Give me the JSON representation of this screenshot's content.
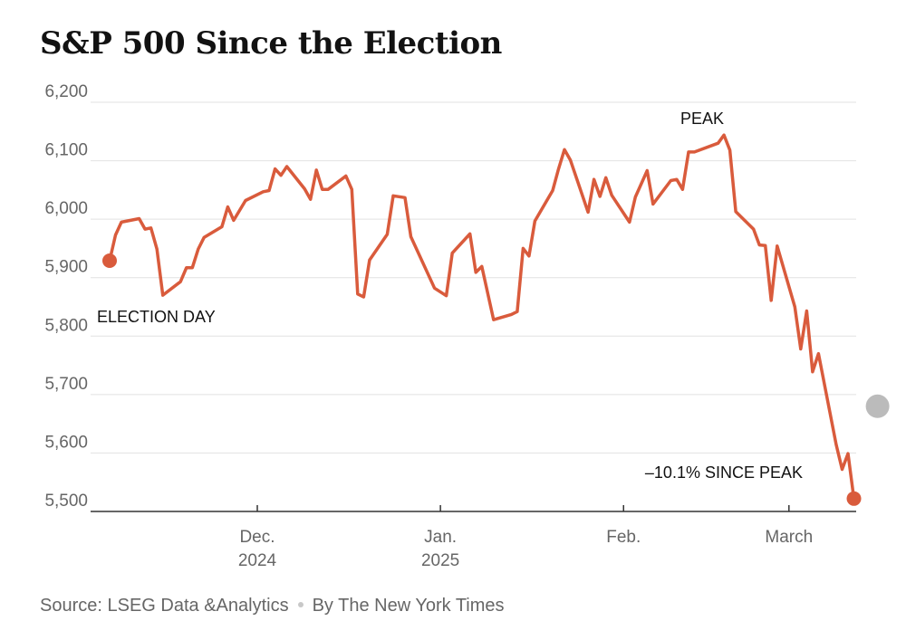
{
  "chart_data": {
    "type": "line",
    "title": "S&P 500 Since the Election",
    "ylim": [
      5500,
      6200
    ],
    "yticks": [
      5500,
      5600,
      5700,
      5800,
      5900,
      6000,
      6100,
      6200
    ],
    "ytick_labels": [
      "5,500",
      "5,600",
      "5,700",
      "5,800",
      "5,900",
      "6,000",
      "6,100",
      "6,200"
    ],
    "x_axis_months": [
      {
        "label": "Dec.",
        "sublabel": "2024",
        "day": 25
      },
      {
        "label": "Jan.",
        "sublabel": "2025",
        "day": 56
      },
      {
        "label": "Feb.",
        "sublabel": "",
        "day": 87
      },
      {
        "label": "March",
        "sublabel": "",
        "day": 115
      }
    ],
    "x_day_range": [
      -2,
      130
    ],
    "series": [
      {
        "name": "S&P 500",
        "color": "#d95b3c",
        "points": [
          [
            0,
            5929
          ],
          [
            1,
            5973
          ],
          [
            2,
            5995
          ],
          [
            5,
            6001
          ],
          [
            6,
            5983
          ],
          [
            7,
            5985
          ],
          [
            8,
            5949
          ],
          [
            9,
            5870
          ],
          [
            12,
            5893
          ],
          [
            13,
            5917
          ],
          [
            14,
            5917
          ],
          [
            15,
            5949
          ],
          [
            16,
            5969
          ],
          [
            19,
            5987
          ],
          [
            20,
            6021
          ],
          [
            21,
            5998
          ],
          [
            23,
            6032
          ],
          [
            26,
            6047
          ],
          [
            27,
            6049
          ],
          [
            28,
            6086
          ],
          [
            29,
            6075
          ],
          [
            30,
            6090
          ],
          [
            33,
            6052
          ],
          [
            34,
            6034
          ],
          [
            35,
            6084
          ],
          [
            36,
            6051
          ],
          [
            37,
            6051
          ],
          [
            40,
            6074
          ],
          [
            41,
            6051
          ],
          [
            42,
            5872
          ],
          [
            43,
            5867
          ],
          [
            44,
            5930
          ],
          [
            47,
            5974
          ],
          [
            48,
            6040
          ],
          [
            50,
            6037
          ],
          [
            51,
            5970
          ],
          [
            55,
            5882
          ],
          [
            57,
            5869
          ],
          [
            58,
            5942
          ],
          [
            61,
            5975
          ],
          [
            62,
            5909
          ],
          [
            63,
            5919
          ],
          [
            65,
            5828
          ],
          [
            68,
            5837
          ],
          [
            69,
            5842
          ],
          [
            70,
            5950
          ],
          [
            71,
            5937
          ],
          [
            72,
            5997
          ],
          [
            75,
            6049
          ],
          [
            76,
            6086
          ],
          [
            77,
            6119
          ],
          [
            78,
            6101
          ],
          [
            81,
            6012
          ],
          [
            82,
            6068
          ],
          [
            83,
            6039
          ],
          [
            84,
            6071
          ],
          [
            85,
            6041
          ],
          [
            88,
            5995
          ],
          [
            89,
            6038
          ],
          [
            91,
            6083
          ],
          [
            92,
            6026
          ],
          [
            95,
            6066
          ],
          [
            96,
            6068
          ],
          [
            97,
            6051
          ],
          [
            98,
            6115
          ],
          [
            99,
            6115
          ],
          [
            103,
            6130
          ],
          [
            104,
            6144
          ],
          [
            105,
            6118
          ],
          [
            106,
            6013
          ],
          [
            109,
            5983
          ],
          [
            110,
            5956
          ],
          [
            111,
            5955
          ],
          [
            112,
            5861
          ],
          [
            113,
            5954
          ],
          [
            116,
            5850
          ],
          [
            117,
            5778
          ],
          [
            118,
            5843
          ],
          [
            119,
            5739
          ],
          [
            120,
            5770
          ],
          [
            123,
            5614
          ],
          [
            124,
            5572
          ],
          [
            125,
            5599
          ],
          [
            126,
            5522
          ]
        ]
      }
    ],
    "markers": [
      {
        "day": 0,
        "value": 5929,
        "color": "#d95b3c"
      },
      {
        "day": 126,
        "value": 5522,
        "color": "#d95b3c"
      },
      {
        "day": 130,
        "value": 5680,
        "color": "#bbbbbb"
      }
    ],
    "annotations": [
      {
        "text": "ELECTION DAY",
        "anchor": "start"
      },
      {
        "text": "PEAK",
        "anchor": "middle"
      },
      {
        "text": "–10.1% SINCE PEAK",
        "anchor": "end"
      }
    ]
  },
  "footer": {
    "source": "Source: LSEG Data &Analytics",
    "credit": "By The New York Times"
  }
}
